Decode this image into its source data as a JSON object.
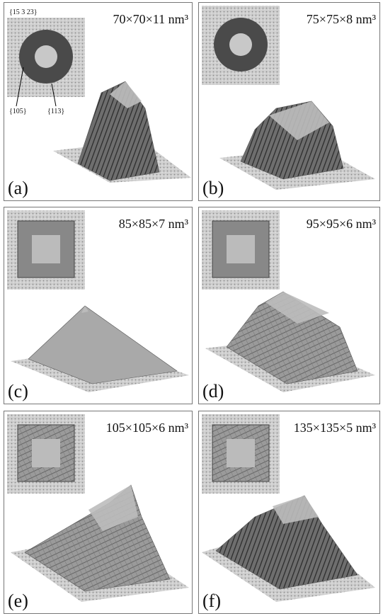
{
  "panels": [
    {
      "label": "(a)",
      "size": "70×70×11 nm³",
      "annotations": [
        "{15 3 23}",
        "{105}",
        "{113}"
      ]
    },
    {
      "label": "(b)",
      "size": "75×75×8 nm³"
    },
    {
      "label": "(c)",
      "size": "85×85×7 nm³"
    },
    {
      "label": "(d)",
      "size": "95×95×6 nm³"
    },
    {
      "label": "(e)",
      "size": "105×105×6 nm³"
    },
    {
      "label": "(f)",
      "size": "135×135×5 nm³"
    }
  ]
}
